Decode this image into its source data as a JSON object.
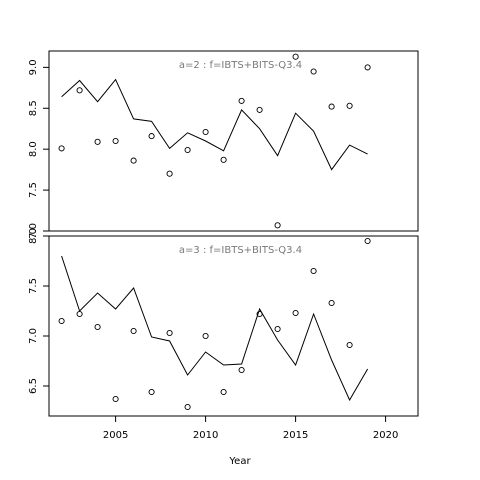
{
  "chart_data": {
    "type": "line",
    "xlabel": "Year",
    "x_ticks": [
      2005,
      2010,
      2015,
      2020
    ],
    "xlim": [
      2001.3,
      2021.8
    ],
    "line_color": "#000000",
    "point_color": "#000000",
    "label_color": "#7a7a7a",
    "panels": [
      {
        "label": "a=2  :  f=IBTS+BITS-Q3.4",
        "ylim": [
          7.0,
          9.2
        ],
        "y_ticks": [
          7.0,
          7.5,
          8.0,
          8.5,
          9.0
        ],
        "y_tick_labels": [
          "7.0",
          "7.5",
          "8.0",
          "8.5",
          "9.0"
        ],
        "series": [
          {
            "type": "line",
            "x": [
              2002,
              2003,
              2004,
              2005,
              2006,
              2007,
              2008,
              2009,
              2010,
              2011,
              2012,
              2013,
              2014,
              2015,
              2016,
              2017,
              2018,
              2019
            ],
            "values": [
              8.64,
              8.84,
              8.58,
              8.85,
              8.37,
              8.34,
              8.01,
              8.2,
              8.1,
              7.98,
              8.48,
              8.25,
              7.92,
              8.44,
              8.22,
              7.75,
              8.05,
              7.94
            ]
          },
          {
            "type": "points",
            "x": [
              2002,
              2003,
              2004,
              2005,
              2006,
              2007,
              2008,
              2009,
              2010,
              2011,
              2012,
              2013,
              2014,
              2015,
              2016,
              2017,
              2018,
              2019
            ],
            "values": [
              8.01,
              8.72,
              8.09,
              8.1,
              7.86,
              8.16,
              7.7,
              7.99,
              8.21,
              7.87,
              8.59,
              8.48,
              7.07,
              9.13,
              8.95,
              8.52,
              8.53,
              9.0
            ]
          }
        ]
      },
      {
        "label": "a=3  :  f=IBTS+BITS-Q3.4",
        "ylim": [
          6.2,
          8.0
        ],
        "y_ticks": [
          6.5,
          7.0,
          7.5,
          8.0
        ],
        "y_tick_labels": [
          "6.5",
          "7.0",
          "7.5",
          "8.0"
        ],
        "series": [
          {
            "type": "line",
            "x": [
              2002,
              2003,
              2004,
              2005,
              2006,
              2007,
              2008,
              2009,
              2010,
              2011,
              2012,
              2013,
              2014,
              2015,
              2016,
              2017,
              2018,
              2019
            ],
            "values": [
              7.8,
              7.25,
              7.43,
              7.27,
              7.48,
              6.99,
              6.95,
              6.61,
              6.84,
              6.71,
              6.72,
              7.27,
              6.96,
              6.71,
              7.22,
              6.76,
              6.36,
              6.67
            ]
          },
          {
            "type": "points",
            "x": [
              2002,
              2003,
              2004,
              2005,
              2006,
              2007,
              2008,
              2009,
              2010,
              2011,
              2012,
              2013,
              2014,
              2015,
              2016,
              2017,
              2018,
              2019
            ],
            "values": [
              7.15,
              7.22,
              7.09,
              6.37,
              7.05,
              6.44,
              7.03,
              6.29,
              7.0,
              6.44,
              6.66,
              7.22,
              7.07,
              7.23,
              7.65,
              7.33,
              6.91,
              7.95
            ]
          }
        ]
      }
    ]
  }
}
